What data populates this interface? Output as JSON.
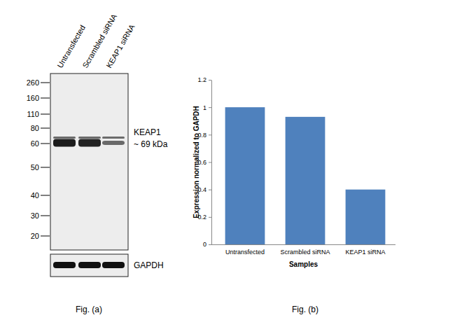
{
  "blot": {
    "lanes": [
      "Untransfected",
      "Scrambled siRNA",
      "KEAP1 siRNA"
    ],
    "markers": [
      260,
      160,
      110,
      80,
      60,
      50,
      40,
      30,
      20
    ],
    "target_label": "KEAP1",
    "target_size": "~ 69 kDa",
    "loading_control": "GAPDH",
    "caption": "Fig. (a)"
  },
  "chart_data": {
    "type": "bar",
    "categories": [
      "Untransfected",
      "Scrambled siRNA",
      "KEAP1 siRNA"
    ],
    "values": [
      1,
      0.93,
      0.4
    ],
    "color": "#4f81bd",
    "x_label": "Samples",
    "y_label": "Expression normalized to GAPDH",
    "ylim": [
      0,
      1.2
    ],
    "yticks": [
      0,
      0.2,
      0.4,
      0.6,
      0.8,
      1,
      1.2
    ],
    "grid": false,
    "caption": "Fig. (b)"
  }
}
